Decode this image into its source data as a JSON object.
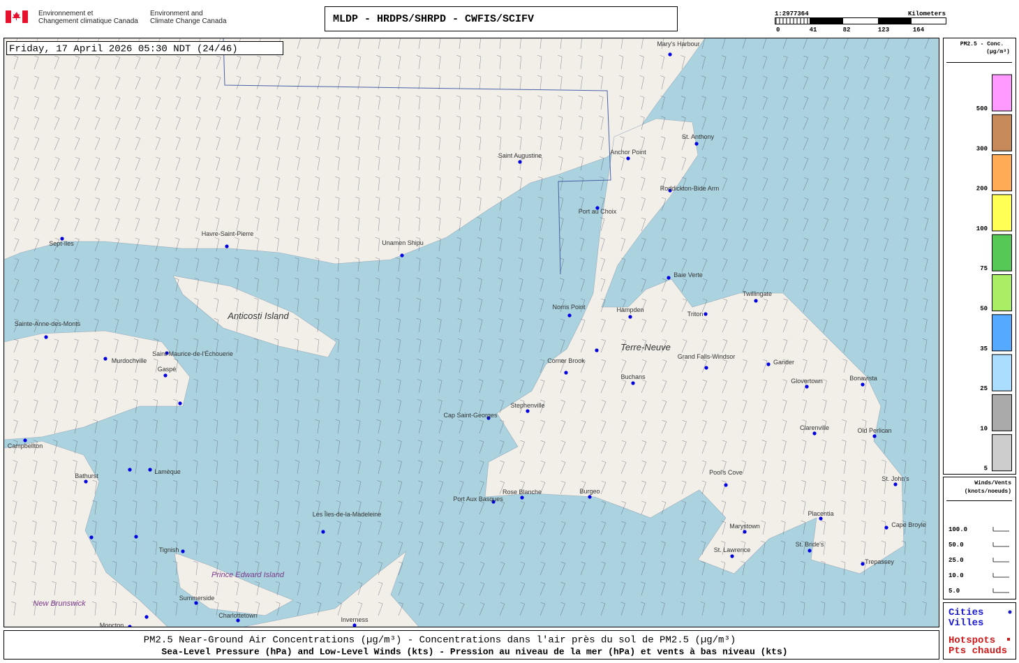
{
  "header": {
    "agency_fr": [
      "Environnement et",
      "Changement climatique Canada"
    ],
    "agency_en": [
      "Environment and",
      "Climate Change Canada"
    ],
    "title": "MLDP - HRDPS/SHRPD - CWFIS/SCIFV"
  },
  "scale": {
    "ratio": "1:2977364",
    "unit": "Kilometers",
    "ticks": [
      0,
      41,
      82,
      123,
      164
    ]
  },
  "map": {
    "timestamp": "Friday, 17 April 2026 05:30 NDT (24/46)",
    "cities": [
      "Mary's Harbour",
      "Saint Augustine",
      "Anchor Point",
      "St. Anthony",
      "Roddickton-Bide Arm",
      "Port au Choix",
      "Sept-Iles",
      "Havre-Saint-Pierre",
      "Unamen Shipu",
      "Baie Verte",
      "Twillingate",
      "Norris Point",
      "Hampden",
      "Triton",
      "Sainte-Anne-des-Monts",
      "Murdochville",
      "Saint-Maurice-de-l'Échouerie",
      "Gaspé",
      "Corner Brook",
      "Grand Falls-Windsor",
      "Gander",
      "Glovertown",
      "Bonavista",
      "Buchans",
      "Stephenville",
      "Cap Saint-Georges",
      "Clarenville",
      "Old Perlican",
      "Campbellton",
      "Bathurst",
      "Lamèque",
      "Pool's Cove",
      "St. John's",
      "Port Aux Basques",
      "Rose Blanche",
      "Burgeo",
      "Les Îles-de-la-Madeleine",
      "Placentia",
      "Marystown",
      "Cape Broyle",
      "Tignish",
      "St. Lawrence",
      "St. Bride's",
      "Trepassey",
      "Summerside",
      "Charlottetown",
      "Inverness"
    ],
    "regions": [
      "Anticosti Island",
      "Terre-Neuve",
      "Prince Edward Island",
      "New Brunswick",
      "Moncton"
    ]
  },
  "pm_legend": {
    "title": [
      "PM2.5 - Conc.",
      "(µg/m³)"
    ],
    "levels": [
      {
        "value": 500,
        "color": "#ff99ff"
      },
      {
        "value": 300,
        "color": "#c68a5a"
      },
      {
        "value": 200,
        "color": "#ffaa55"
      },
      {
        "value": 100,
        "color": "#ffff55"
      },
      {
        "value": 75,
        "color": "#55c855"
      },
      {
        "value": 50,
        "color": "#aaee66"
      },
      {
        "value": 35,
        "color": "#55aaff"
      },
      {
        "value": 25,
        "color": "#aaddff"
      },
      {
        "value": 10,
        "color": "#aaaaaa"
      },
      {
        "value": 5,
        "color": "#cccccc"
      }
    ]
  },
  "wind_legend": {
    "title": [
      "Winds/Vents",
      "(knots/noeuds)"
    ],
    "speeds": [
      "100.0",
      "50.0",
      "25.0",
      "10.0",
      "5.0"
    ]
  },
  "markers_legend": {
    "cities": [
      "Cities",
      "Villes"
    ],
    "hotspots": [
      "Hotspots",
      "Pts chauds"
    ]
  },
  "footer": [
    "PM2.5 Near-Ground Air Concentrations (µg/m³) - Concentrations dans l'air près du sol de PM2.5 (µg/m³)",
    "Sea-Level Pressure (hPa) and Low-Level Winds (kts) - Pression au niveau de la mer (hPa) et vents à bas niveau (kts)"
  ]
}
